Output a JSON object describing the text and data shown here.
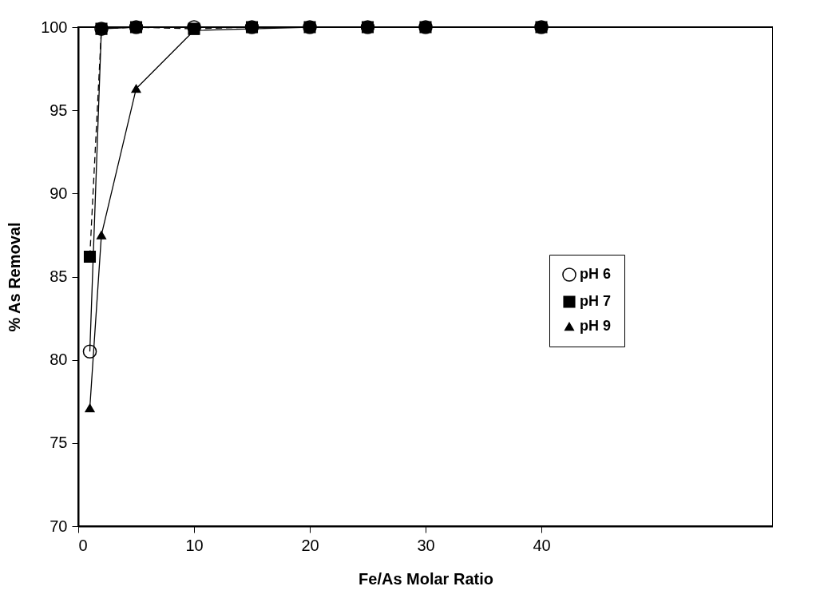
{
  "chart_data": {
    "type": "line",
    "xlabel": "Fe/As Molar Ratio",
    "ylabel": "% As Removal",
    "xlim": [
      0,
      60
    ],
    "xticks": [
      0,
      10,
      20,
      30,
      40
    ],
    "ylim": [
      70,
      100
    ],
    "yticks": [
      70,
      75,
      80,
      85,
      90,
      95,
      100
    ],
    "legend": "right",
    "grid": false,
    "series": [
      {
        "name": "pH 6",
        "color": "#000000",
        "marker": "circle",
        "line_style": "solid",
        "x": [
          1,
          2,
          5,
          10,
          15,
          20,
          25,
          30,
          40
        ],
        "values": [
          80.5,
          99.9,
          100,
          100,
          100,
          100,
          100,
          100,
          100
        ]
      },
      {
        "name": "pH 7",
        "color": "#000000",
        "marker": "square",
        "line_style": "dashed",
        "x": [
          1,
          2,
          5,
          10,
          15,
          20,
          25,
          30,
          40
        ],
        "values": [
          86.2,
          99.9,
          100,
          99.9,
          100,
          100,
          100,
          100,
          100
        ]
      },
      {
        "name": "pH 9",
        "color": "#000000",
        "marker": "triangle",
        "line_style": "solid",
        "x": [
          1,
          2,
          5,
          10,
          15,
          20,
          25,
          30,
          40
        ],
        "values": [
          77.1,
          87.5,
          96.3,
          99.8,
          99.9,
          100,
          100,
          100,
          100
        ]
      }
    ]
  }
}
